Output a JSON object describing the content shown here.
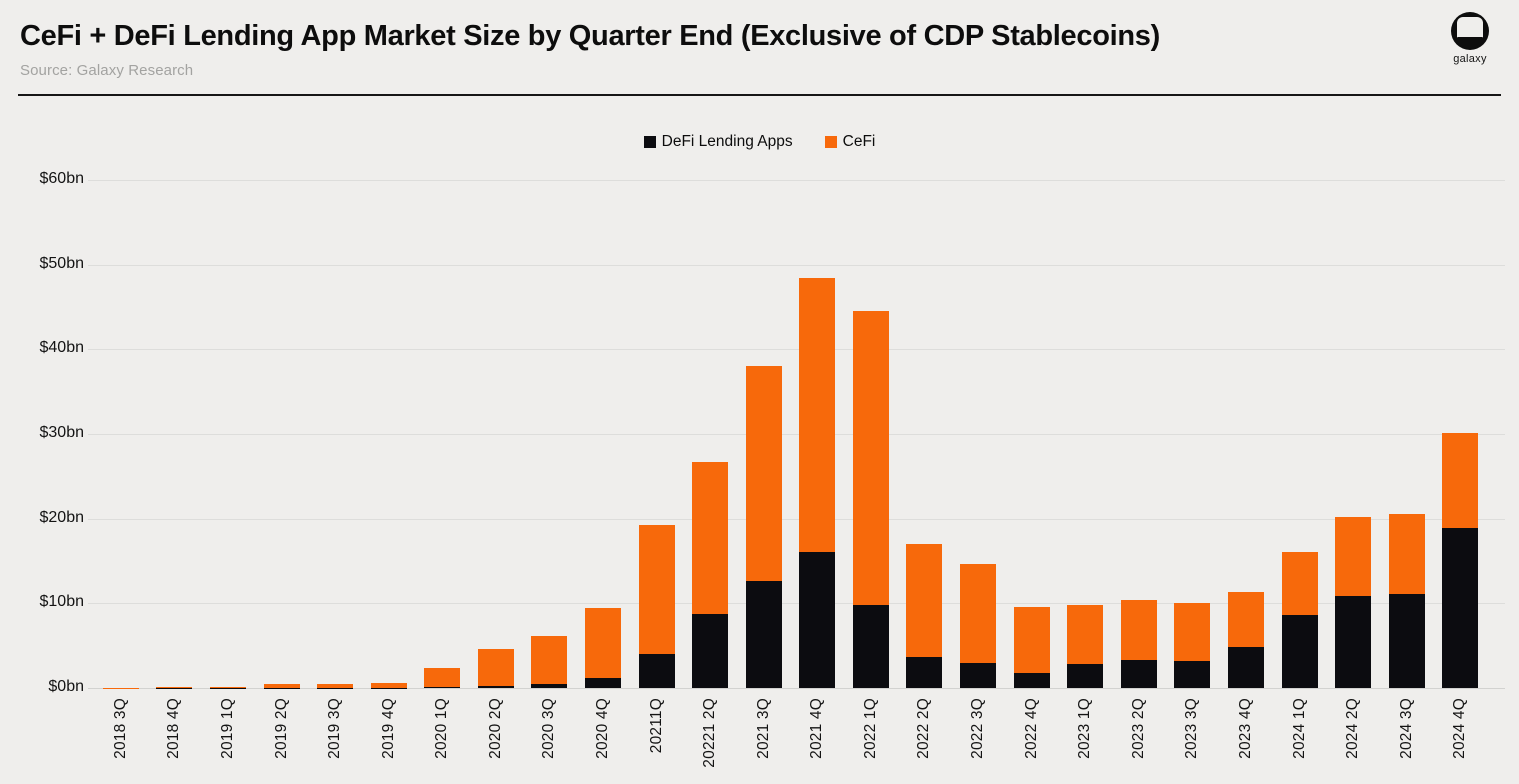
{
  "header": {
    "title": "CeFi + DeFi Lending App Market Size by Quarter End (Exclusive of CDP Stablecoins)",
    "source": "Source: Galaxy Research",
    "logo_text": "galaxy"
  },
  "colors": {
    "background": "#efeeec",
    "defi_black": "#0c0c10",
    "cefi_orange": "#f7690b",
    "gridline": "#dddddb",
    "title_text": "#0d0d0d",
    "source_text": "#a3a3a1"
  },
  "legend": [
    {
      "label": "DeFi Lending Apps",
      "color": "#0c0c10"
    },
    {
      "label": "CeFi",
      "color": "#f7690b"
    }
  ],
  "chart_data": {
    "type": "bar",
    "stacked": true,
    "title": "CeFi + DeFi Lending App Market Size by Quarter End (Exclusive of CDP Stablecoins)",
    "xlabel": "",
    "ylabel": "",
    "ylim": [
      0,
      60
    ],
    "grid": true,
    "legend_position": "top-center",
    "y_ticks": [
      {
        "value": 0,
        "label": "$0bn"
      },
      {
        "value": 10,
        "label": "$10bn"
      },
      {
        "value": 20,
        "label": "$20bn"
      },
      {
        "value": 30,
        "label": "$30bn"
      },
      {
        "value": 40,
        "label": "$40bn"
      },
      {
        "value": 50,
        "label": "$50bn"
      },
      {
        "value": 60,
        "label": "$60bn"
      }
    ],
    "categories": [
      "2018 3Q",
      "2018 4Q",
      "2019 1Q",
      "2019 2Q",
      "2019 3Q",
      "2019 4Q",
      "2020 1Q",
      "2020 2Q",
      "2020 3Q",
      "2020 4Q",
      "20211Q",
      "20221 2Q",
      "2021 3Q",
      "2021 4Q",
      "2022 1Q",
      "2022 2Q",
      "2022 3Q",
      "2022 4Q",
      "2023 1Q",
      "2023 2Q",
      "2023 3Q",
      "2023 4Q",
      "2024 1Q",
      "2024 2Q",
      "2024 3Q",
      "2024 4Q"
    ],
    "series": [
      {
        "name": "DeFi Lending Apps",
        "color": "#0c0c10",
        "values": [
          0.0,
          0.02,
          0.02,
          0.03,
          0.03,
          0.05,
          0.1,
          0.2,
          0.5,
          1.2,
          4.0,
          8.8,
          12.7,
          16.1,
          9.8,
          3.7,
          3.0,
          1.8,
          2.8,
          3.3,
          3.2,
          4.9,
          8.6,
          10.9,
          11.1,
          18.9
        ]
      },
      {
        "name": "CeFi",
        "color": "#f7690b",
        "values": [
          0.05,
          0.13,
          0.13,
          0.42,
          0.42,
          0.5,
          2.3,
          4.4,
          5.6,
          8.3,
          15.2,
          17.9,
          25.3,
          32.3,
          34.7,
          13.3,
          11.6,
          7.8,
          7.0,
          7.1,
          6.9,
          6.5,
          7.5,
          9.3,
          9.4,
          11.2
        ]
      }
    ],
    "totals": [
      0.05,
      0.15,
      0.15,
      0.45,
      0.45,
      0.55,
      2.4,
      4.6,
      6.1,
      9.5,
      19.2,
      26.7,
      38.0,
      48.4,
      44.5,
      17.0,
      14.6,
      9.6,
      9.8,
      10.4,
      10.1,
      11.4,
      16.1,
      20.2,
      20.5,
      30.1
    ]
  }
}
